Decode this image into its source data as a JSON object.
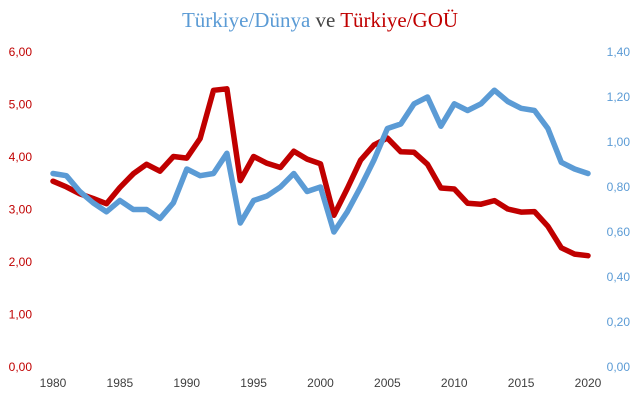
{
  "colors": {
    "world_series": "#5b9bd5",
    "developing_series": "#c00000",
    "title_connector": "#444444",
    "x_axis_text": "#404040"
  },
  "title": {
    "part1": "Türkiye/Dünya",
    "connector": " ve ",
    "part2": "Türkiye/GOÜ"
  },
  "chart_data": {
    "type": "line",
    "x": [
      1980,
      1981,
      1982,
      1983,
      1984,
      1985,
      1986,
      1987,
      1988,
      1989,
      1990,
      1991,
      1992,
      1993,
      1994,
      1995,
      1996,
      1997,
      1998,
      1999,
      2000,
      2001,
      2002,
      2003,
      2004,
      2005,
      2006,
      2007,
      2008,
      2009,
      2010,
      2011,
      2012,
      2013,
      2014,
      2015,
      2016,
      2017,
      2018,
      2019,
      2020
    ],
    "xlim": [
      1980,
      2020
    ],
    "x_ticks": [
      "1980",
      "1985",
      "1990",
      "1995",
      "2000",
      "2005",
      "2010",
      "2015",
      "2020"
    ],
    "y_left": {
      "range": [
        0,
        6
      ],
      "ticks": [
        "0,00",
        "1,00",
        "2,00",
        "3,00",
        "4,00",
        "5,00",
        "6,00"
      ]
    },
    "y_right": {
      "range": [
        0,
        1.4
      ],
      "ticks": [
        "0,00",
        "0,20",
        "0,40",
        "0,60",
        "0,80",
        "1,00",
        "1,20",
        "1,40"
      ]
    },
    "grid": false,
    "legend": "none",
    "series": [
      {
        "axis": "left",
        "color": "#c00000",
        "values": [
          3.54,
          3.43,
          3.3,
          3.21,
          3.11,
          3.42,
          3.68,
          3.86,
          3.73,
          4.01,
          3.98,
          4.35,
          5.27,
          5.3,
          3.55,
          4.01,
          3.88,
          3.8,
          4.11,
          3.96,
          3.87,
          2.89,
          3.4,
          3.94,
          4.23,
          4.36,
          4.1,
          4.09,
          3.86,
          3.41,
          3.39,
          3.12,
          3.1,
          3.17,
          3.01,
          2.95,
          2.96,
          2.68,
          2.27,
          2.15,
          2.12
        ]
      },
      {
        "axis": "right",
        "color": "#5b9bd5",
        "values": [
          0.86,
          0.85,
          0.78,
          0.73,
          0.69,
          0.74,
          0.7,
          0.7,
          0.66,
          0.73,
          0.88,
          0.85,
          0.86,
          0.95,
          0.64,
          0.74,
          0.76,
          0.8,
          0.86,
          0.78,
          0.8,
          0.6,
          0.69,
          0.8,
          0.92,
          1.06,
          1.08,
          1.17,
          1.2,
          1.07,
          1.17,
          1.14,
          1.17,
          1.23,
          1.18,
          1.15,
          1.14,
          1.06,
          0.91,
          0.88,
          0.86
        ]
      }
    ]
  }
}
